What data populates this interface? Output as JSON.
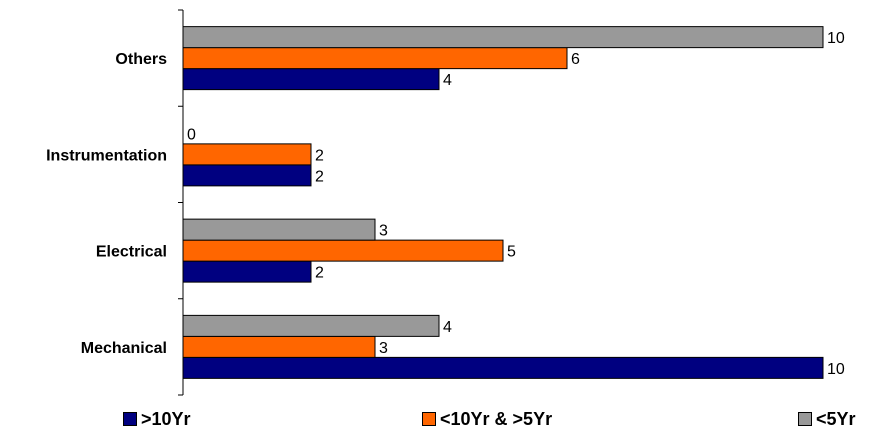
{
  "chart_data": {
    "type": "bar",
    "orientation": "horizontal",
    "categories": [
      "Mechanical",
      "Electrical",
      "Instrumentation",
      "Others"
    ],
    "series": [
      {
        "name": ">10Yr",
        "color": "#000080",
        "values": [
          10,
          2,
          2,
          4
        ]
      },
      {
        "name": "<10Yr & >5Yr",
        "color": "#FF6600",
        "values": [
          3,
          5,
          2,
          6
        ]
      },
      {
        "name": "<5Yr",
        "color": "#999999",
        "values": [
          4,
          3,
          0,
          10
        ]
      }
    ],
    "xlim": [
      0,
      10
    ],
    "grid": false,
    "legend_position": "bottom"
  }
}
